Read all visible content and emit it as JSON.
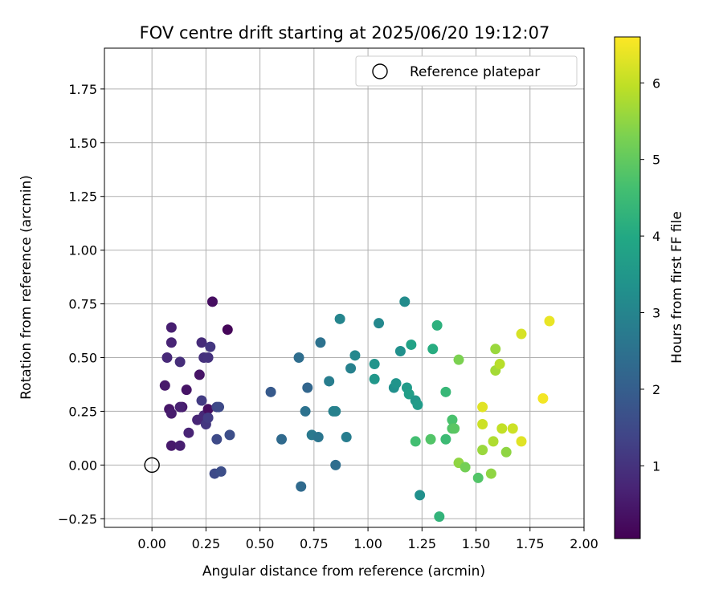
{
  "chart_data": {
    "type": "scatter",
    "title": "FOV centre drift starting at 2025/06/20 19:12:07",
    "xlabel": "Angular distance from reference (arcmin)",
    "ylabel": "Rotation from reference (arcmin)",
    "xlim": [
      -0.22,
      2.0
    ],
    "ylim": [
      -0.29,
      1.94
    ],
    "xticks": [
      "0.00",
      "0.25",
      "0.50",
      "0.75",
      "1.00",
      "1.25",
      "1.50",
      "1.75",
      "2.00"
    ],
    "yticks": [
      "−0.25",
      "0.00",
      "0.25",
      "0.50",
      "0.75",
      "1.00",
      "1.25",
      "1.50",
      "1.75"
    ],
    "grid": true,
    "legend": {
      "placement": "top-right",
      "entries": [
        "Reference platepar"
      ]
    },
    "reference_point": {
      "x": 0.0,
      "y": 0.0
    },
    "colorbar": {
      "label": "Hours from first FF file",
      "colormap": "viridis",
      "range": [
        0.05,
        6.6
      ],
      "ticks": [
        "1",
        "2",
        "3",
        "4",
        "5",
        "6"
      ]
    },
    "series": [
      {
        "points": [
          [
            0.35,
            0.63,
            0.15
          ],
          [
            0.28,
            0.76,
            0.3
          ],
          [
            0.09,
            0.64,
            0.6
          ],
          [
            0.09,
            0.57,
            0.7
          ],
          [
            0.07,
            0.5,
            0.8
          ],
          [
            0.13,
            0.48,
            0.9
          ],
          [
            0.06,
            0.37,
            0.5
          ],
          [
            0.16,
            0.35,
            0.4
          ],
          [
            0.08,
            0.26,
            0.45
          ],
          [
            0.09,
            0.24,
            0.55
          ],
          [
            0.14,
            0.27,
            0.5
          ],
          [
            0.13,
            0.27,
            0.65
          ],
          [
            0.09,
            0.09,
            0.5
          ],
          [
            0.13,
            0.09,
            0.6
          ],
          [
            0.17,
            0.15,
            0.7
          ],
          [
            0.21,
            0.21,
            0.75
          ],
          [
            0.24,
            0.23,
            0.8
          ],
          [
            0.26,
            0.26,
            0.3
          ],
          [
            0.22,
            0.42,
            0.4
          ],
          [
            0.23,
            0.57,
            0.85
          ],
          [
            0.24,
            0.5,
            0.95
          ],
          [
            0.26,
            0.5,
            1.0
          ],
          [
            0.27,
            0.55,
            1.1
          ],
          [
            0.23,
            0.3,
            1.2
          ],
          [
            0.25,
            0.19,
            1.1
          ],
          [
            0.26,
            0.22,
            1.2
          ],
          [
            0.3,
            0.27,
            1.4
          ],
          [
            0.31,
            0.27,
            1.5
          ],
          [
            0.3,
            0.12,
            1.5
          ],
          [
            0.36,
            0.14,
            1.6
          ],
          [
            0.29,
            -0.04,
            1.5
          ],
          [
            0.32,
            -0.03,
            1.6
          ],
          [
            0.55,
            0.34,
            1.9
          ],
          [
            0.6,
            0.12,
            2.3
          ],
          [
            0.68,
            0.5,
            2.4
          ],
          [
            0.71,
            0.25,
            2.5
          ],
          [
            0.72,
            0.36,
            2.2
          ],
          [
            0.74,
            0.14,
            2.7
          ],
          [
            0.77,
            0.13,
            2.6
          ],
          [
            0.69,
            -0.1,
            2.3
          ],
          [
            0.78,
            0.57,
            2.5
          ],
          [
            0.82,
            0.39,
            2.8
          ],
          [
            0.84,
            0.25,
            2.9
          ],
          [
            0.85,
            0.25,
            2.9
          ],
          [
            0.85,
            0.0,
            2.4
          ],
          [
            0.87,
            0.68,
            3.0
          ],
          [
            0.9,
            0.13,
            2.8
          ],
          [
            0.92,
            0.45,
            2.9
          ],
          [
            0.94,
            0.51,
            3.1
          ],
          [
            1.03,
            0.47,
            3.4
          ],
          [
            1.03,
            0.4,
            3.5
          ],
          [
            1.05,
            0.66,
            3.1
          ],
          [
            1.12,
            0.36,
            3.3
          ],
          [
            1.13,
            0.38,
            3.4
          ],
          [
            1.15,
            0.53,
            3.3
          ],
          [
            1.17,
            0.76,
            3.2
          ],
          [
            1.18,
            0.36,
            3.6
          ],
          [
            1.19,
            0.33,
            3.7
          ],
          [
            1.2,
            0.56,
            3.8
          ],
          [
            1.22,
            0.3,
            3.5
          ],
          [
            1.23,
            0.28,
            3.6
          ],
          [
            1.24,
            -0.14,
            3.3
          ],
          [
            1.22,
            0.11,
            4.6
          ],
          [
            1.29,
            0.12,
            4.8
          ],
          [
            1.3,
            0.54,
            4.1
          ],
          [
            1.32,
            0.65,
            4.2
          ],
          [
            1.33,
            -0.24,
            4.3
          ],
          [
            1.36,
            0.34,
            4.4
          ],
          [
            1.36,
            0.12,
            4.5
          ],
          [
            1.39,
            0.21,
            4.7
          ],
          [
            1.39,
            0.17,
            4.8
          ],
          [
            1.4,
            0.17,
            4.9
          ],
          [
            1.42,
            0.49,
            5.3
          ],
          [
            1.42,
            0.01,
            5.5
          ],
          [
            1.45,
            -0.01,
            5.2
          ],
          [
            1.51,
            -0.06,
            4.8
          ],
          [
            1.53,
            0.27,
            6.3
          ],
          [
            1.53,
            0.07,
            5.6
          ],
          [
            1.53,
            0.19,
            6.1
          ],
          [
            1.57,
            -0.04,
            5.5
          ],
          [
            1.58,
            0.11,
            5.8
          ],
          [
            1.59,
            0.54,
            5.6
          ],
          [
            1.59,
            0.44,
            5.7
          ],
          [
            1.61,
            0.47,
            5.9
          ],
          [
            1.62,
            0.17,
            6.0
          ],
          [
            1.64,
            0.06,
            5.5
          ],
          [
            1.67,
            0.17,
            6.1
          ],
          [
            1.71,
            0.61,
            6.2
          ],
          [
            1.71,
            0.11,
            6.3
          ],
          [
            1.81,
            0.31,
            6.5
          ],
          [
            1.84,
            0.67,
            6.4
          ]
        ]
      }
    ]
  }
}
